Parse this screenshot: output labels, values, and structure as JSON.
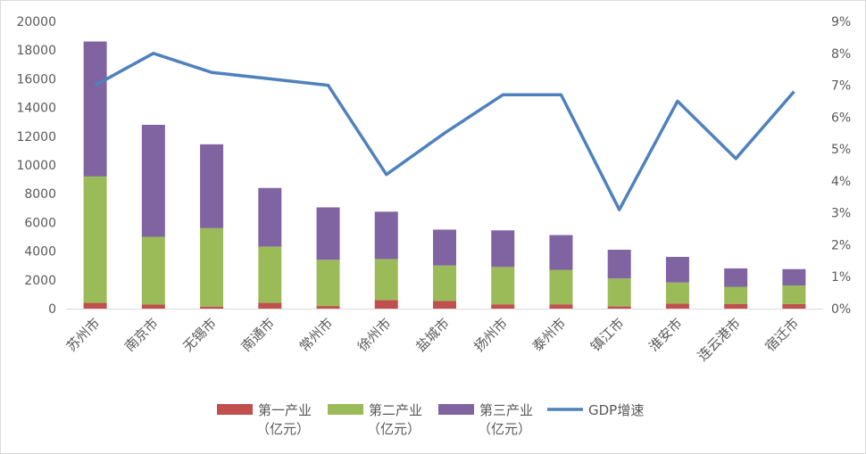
{
  "chart_data": {
    "type": "bar",
    "stacked": true,
    "categories": [
      "苏州市",
      "南京市",
      "无锡市",
      "南通市",
      "常州市",
      "徐州市",
      "盐城市",
      "扬州市",
      "泰州市",
      "镇江市",
      "淮安市",
      "连云港市",
      "宿迁市"
    ],
    "series": [
      {
        "name": "第一产业（亿元）",
        "name_lines": [
          "第一产业",
          "（亿元）"
        ],
        "color": "#c0504d",
        "axis": "left",
        "values": [
          400,
          280,
          140,
          400,
          180,
          600,
          530,
          300,
          300,
          150,
          350,
          330,
          320
        ]
      },
      {
        "name": "第二产业（亿元）",
        "name_lines": [
          "第二产业",
          "（亿元）"
        ],
        "color": "#9bbb59",
        "axis": "left",
        "values": [
          8800,
          4720,
          5460,
          3920,
          3220,
          2850,
          2470,
          2600,
          2400,
          1950,
          1470,
          1190,
          1290
        ]
      },
      {
        "name": "第三产业（亿元）",
        "name_lines": [
          "第三产业",
          "（亿元）"
        ],
        "color": "#8064a2",
        "axis": "left",
        "values": [
          9400,
          7800,
          5840,
          4080,
          3650,
          3300,
          2500,
          2550,
          2420,
          2000,
          1780,
          1280,
          1140
        ]
      },
      {
        "name": "GDP增速",
        "name_lines": [
          "GDP增速"
        ],
        "color": "#4f81bd",
        "type": "line",
        "axis": "right",
        "values": [
          0.07,
          0.08,
          0.074,
          0.072,
          0.07,
          0.042,
          0.055,
          0.067,
          0.067,
          0.031,
          0.065,
          0.047,
          0.068
        ]
      }
    ],
    "y_left": {
      "ylim": [
        0,
        20000
      ],
      "ticks": [
        "0",
        "2000",
        "4000",
        "6000",
        "8000",
        "10000",
        "12000",
        "14000",
        "16000",
        "18000",
        "20000"
      ]
    },
    "y_right": {
      "ylim": [
        0,
        0.09
      ],
      "ticks": [
        "0%",
        "1%",
        "2%",
        "3%",
        "4%",
        "5%",
        "6%",
        "7%",
        "8%",
        "9%"
      ]
    },
    "title": "",
    "xlabel": "",
    "ylabel": "",
    "grid": false,
    "legend_position": "bottom"
  }
}
